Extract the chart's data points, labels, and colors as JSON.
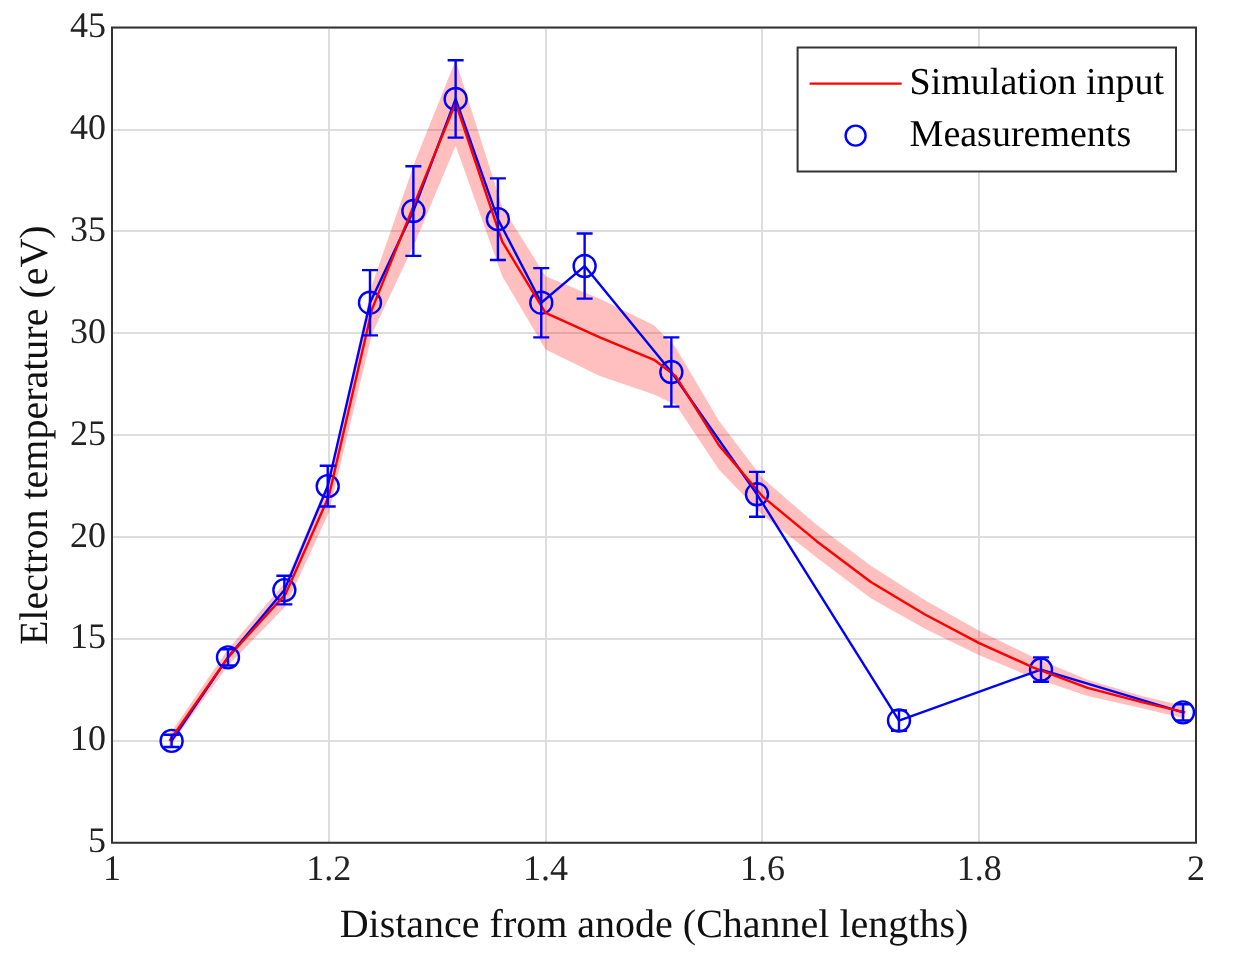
{
  "chart_data": {
    "type": "line",
    "xlabel": "Distance from anode (Channel lengths)",
    "ylabel": "Electron temperature (eV)",
    "xlim": [
      1,
      2
    ],
    "xticks": [
      1,
      1.2,
      1.4,
      1.6,
      1.8,
      2
    ],
    "ylim": [
      5,
      45
    ],
    "yticks": [
      5,
      10,
      15,
      20,
      25,
      30,
      35,
      40,
      45
    ],
    "grid": true,
    "legend": "top right",
    "series": [
      {
        "name": "Simulation input",
        "color": "#ff0000",
        "marker": "none",
        "line_style": "solid",
        "x": [
          1.053,
          1.107,
          1.16,
          1.2,
          1.24,
          1.28,
          1.317,
          1.36,
          1.4,
          1.45,
          1.5,
          1.52,
          1.56,
          1.6,
          1.65,
          1.7,
          1.75,
          1.8,
          1.85,
          1.9,
          1.95,
          1.99
        ],
        "values": [
          10,
          14.1,
          17.2,
          22,
          31.2,
          36.5,
          41.3,
          34.5,
          31,
          29.8,
          28.7,
          27.9,
          24.5,
          22,
          19.8,
          17.8,
          16.2,
          14.8,
          13.6,
          12.6,
          11.9,
          11.4
        ],
        "lower": [
          9.7,
          13.7,
          16.6,
          21.2,
          30,
          34.5,
          39.2,
          32.8,
          29.2,
          27.9,
          27,
          26.5,
          23.3,
          21.1,
          19,
          17,
          15.5,
          14.2,
          13.1,
          12.2,
          11.6,
          11.1
        ],
        "upper": [
          10.3,
          14.5,
          17.8,
          22.8,
          32.4,
          38.5,
          43.4,
          36.2,
          32.8,
          31.7,
          30.4,
          29.3,
          25.7,
          22.9,
          20.6,
          18.6,
          16.9,
          15.4,
          14.1,
          13,
          12.2,
          11.7
        ]
      },
      {
        "name": "Measurements",
        "color": "#0000ff",
        "marker": "circle",
        "line_style": "solid",
        "x": [
          1.055,
          1.107,
          1.159,
          1.199,
          1.238,
          1.278,
          1.317,
          1.356,
          1.396,
          1.436,
          1.516,
          1.595,
          1.726,
          1.857,
          1.988
        ],
        "values": [
          10,
          14.1,
          17.4,
          22.5,
          31.5,
          36,
          41.5,
          35.6,
          31.5,
          33.3,
          28.1,
          22.1,
          11,
          13.5,
          11.4
        ],
        "errors": [
          0.3,
          0.4,
          0.7,
          1,
          1.6,
          2.2,
          1.9,
          2,
          1.7,
          1.6,
          1.7,
          1.1,
          0.5,
          0.6,
          0.4
        ]
      }
    ]
  }
}
